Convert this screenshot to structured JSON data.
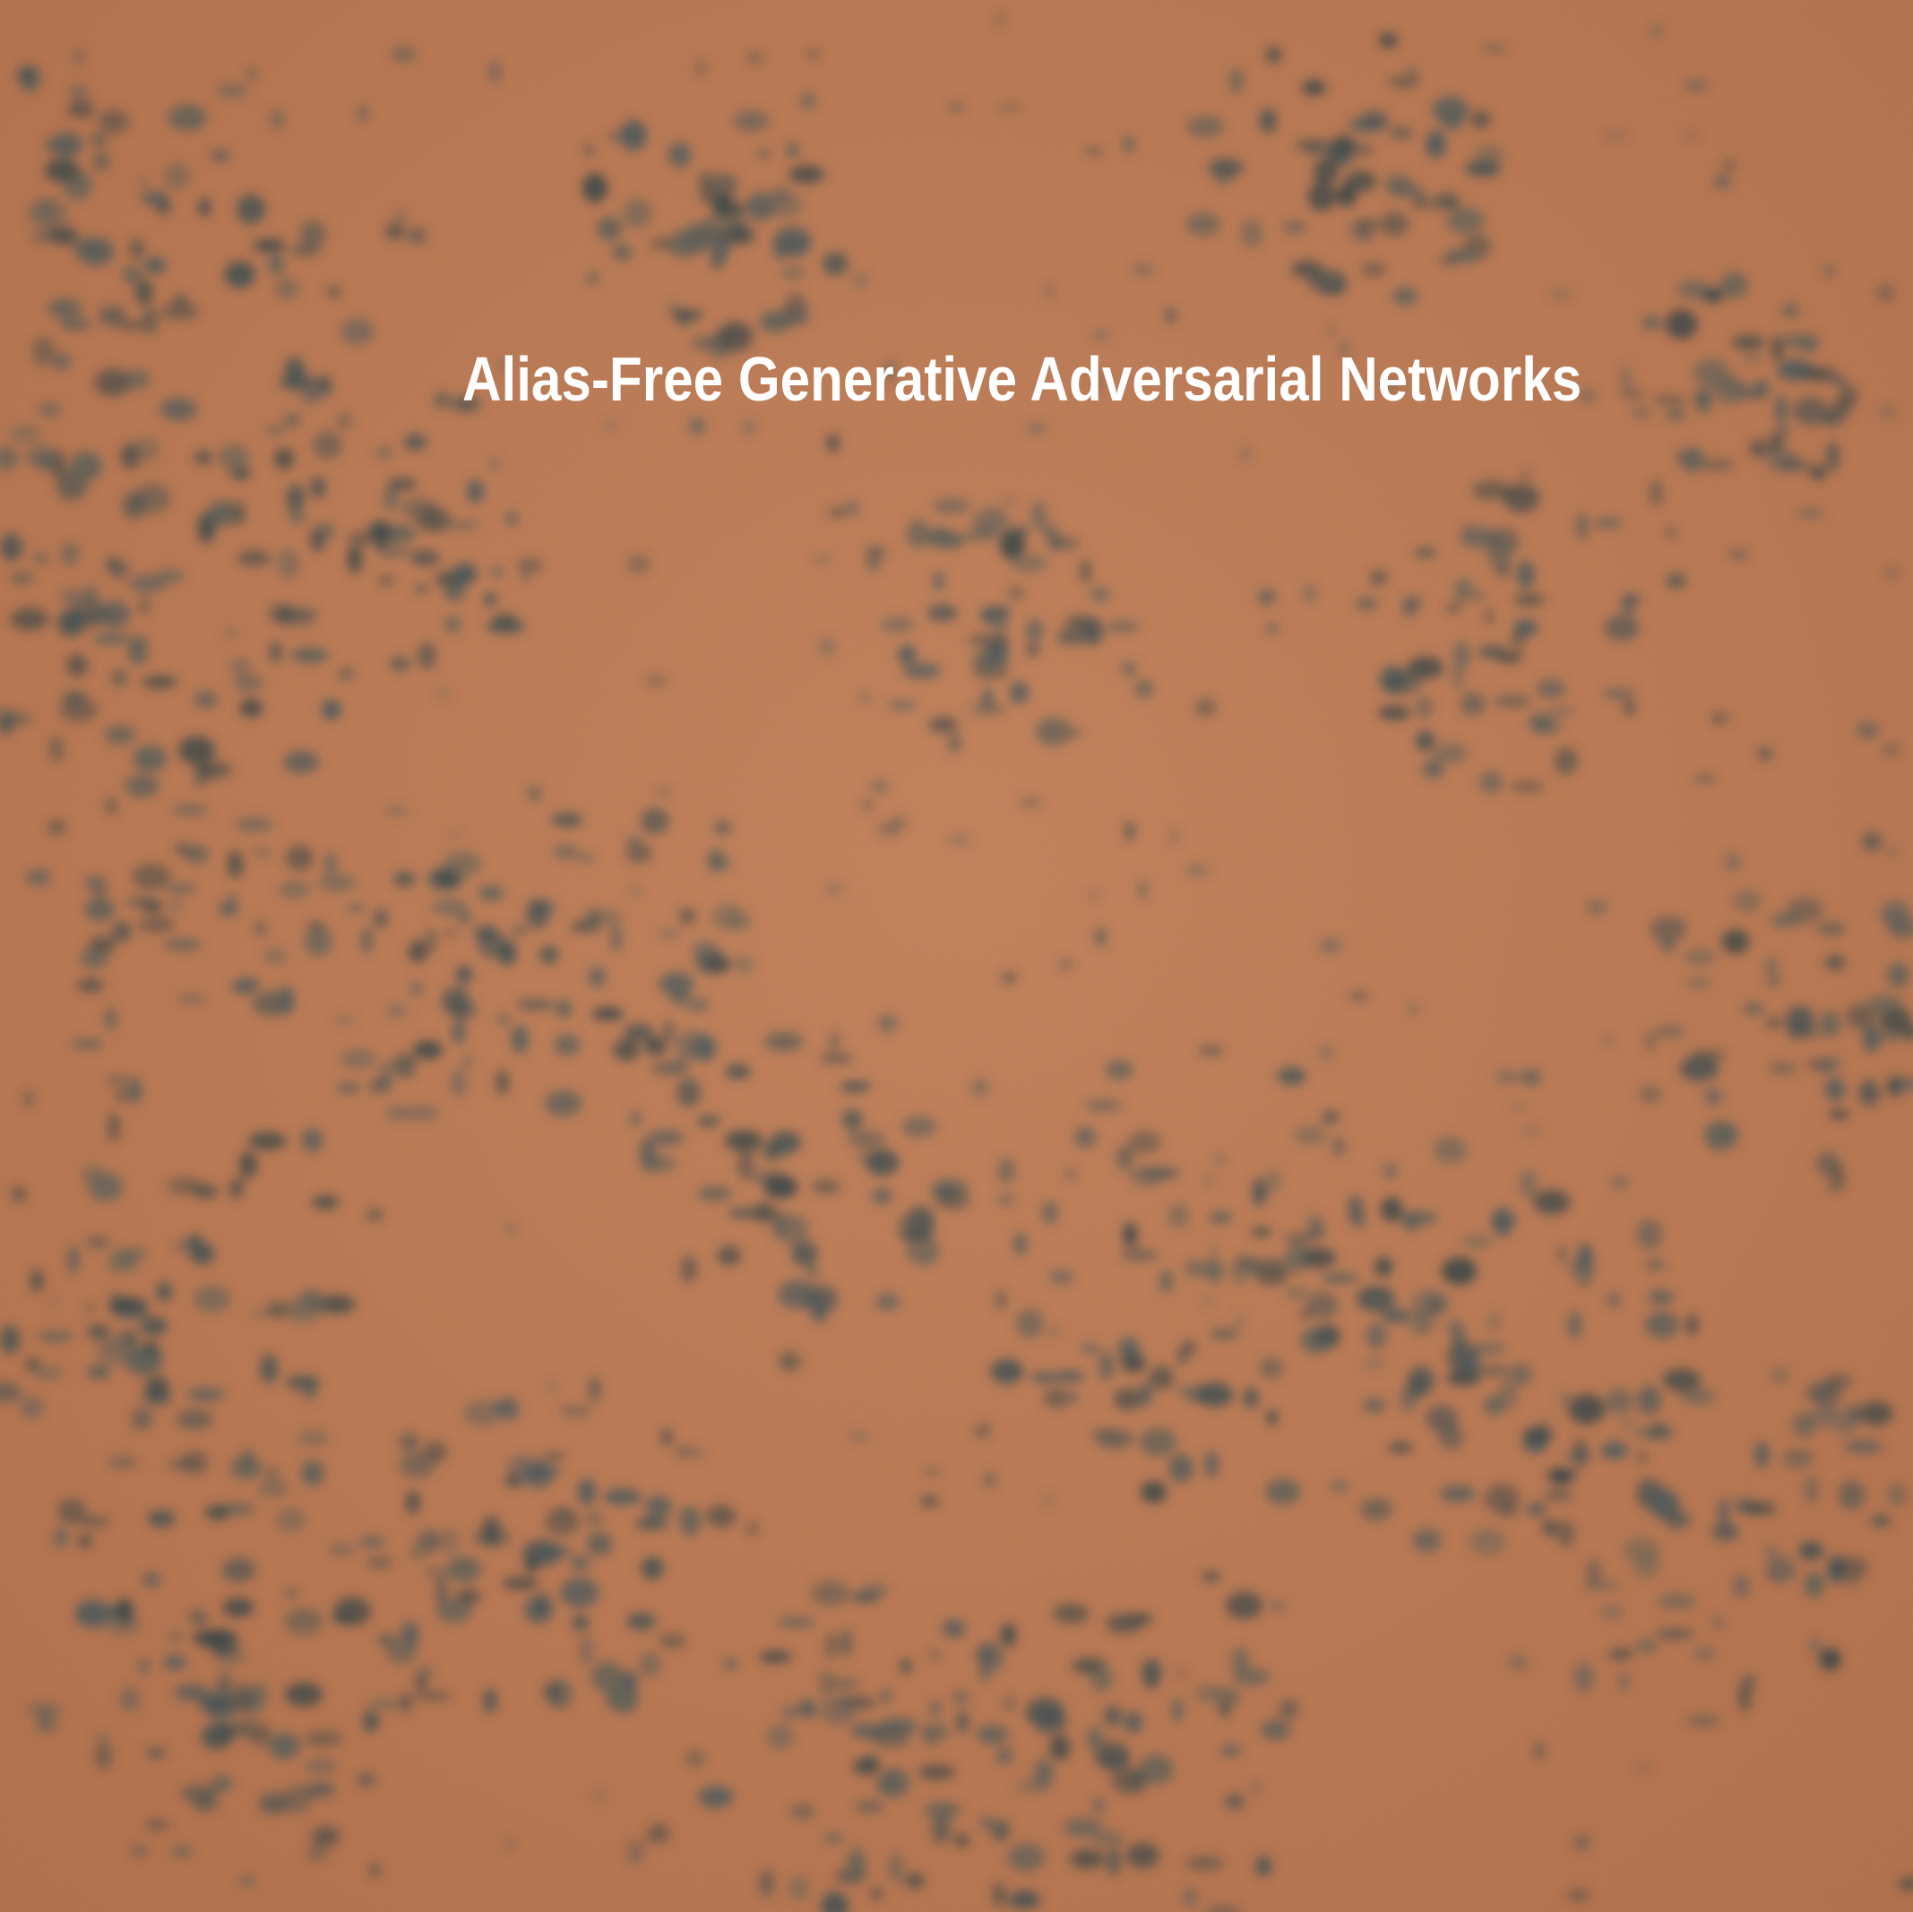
{
  "image": {
    "subject": "Mars-like reddish terrain with scattered dark blue-grey patches",
    "palette": {
      "ground": "#b8744e",
      "ground_light": "#c9885f",
      "ground_dark": "#a86544",
      "spots": "#4f5a5c",
      "spots_dark": "#3c4748"
    }
  },
  "caption": {
    "text": "Alias-Free Generative Adversarial Networks",
    "color": "#ffffff"
  }
}
